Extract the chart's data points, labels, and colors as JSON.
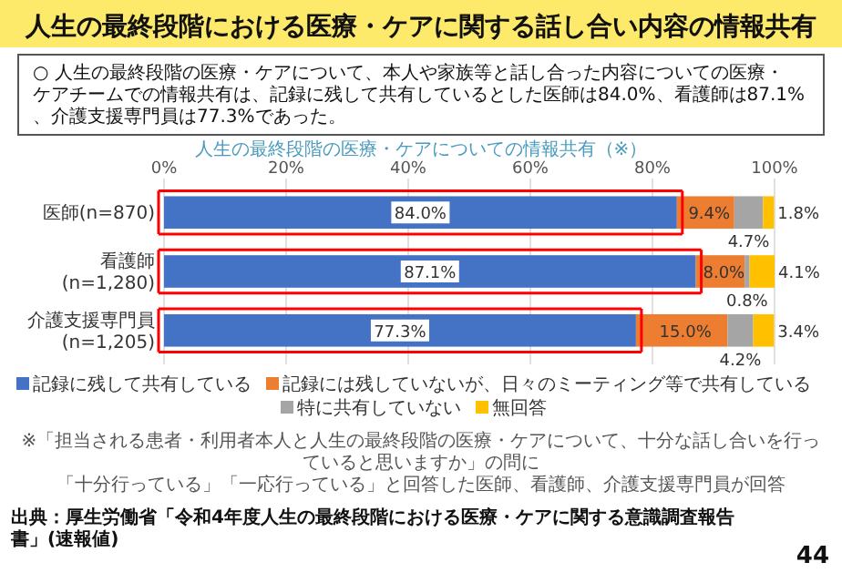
{
  "chart_data": {
    "type": "bar",
    "orientation": "horizontal",
    "stacked": true,
    "title": "人生の最終段階における医療・ケアに関する話し合い内容の情報共有",
    "subtitle": "○ 人生の最終段階の医療・ケアについて、本人や家族等と話し合った内容についての医療・ケアチームでの情報共有は、記録に残して共有しているとした医師は84.0%、看護師は87.1%、介護支援専門員は77.3%であった。",
    "annotations": [
      "人生の最終段階の医療・ケアについての情報共有（※）",
      "※「担当される患者・利用者本人と人生の最終段階の医療・ケアについて、十分な話し合いを行っていると思いますか」の問に",
      "「十分行っている」「一応行っている」と回答した医師、看護師、介護支援専門員が回答",
      "出典：厚生労働省「令和4年度人生の最終段階における医療・ケアに関する意識調査報告書」(速報値)",
      "44"
    ],
    "categories": [
      "医師(n=870)",
      "看護師(n=1,280)",
      "介護支援専門員(n=1,205)"
    ],
    "series": [
      {
        "name": "記録に残して共有している",
        "color": "#4472c4",
        "values": [
          84.0,
          87.1,
          77.3
        ],
        "value_labels": [
          "84.0%",
          "87.1%",
          "77.3%"
        ]
      },
      {
        "name": "記録には残していないが、日々のミーティング等で共有している",
        "color": "#ed7d31",
        "values": [
          9.4,
          8.0,
          15.0
        ],
        "value_labels": [
          "9.4%",
          "8.0%",
          "15.0%"
        ]
      },
      {
        "name": "特に共有していない",
        "color": "#a5a5a5",
        "values": [
          4.7,
          0.8,
          4.2
        ],
        "value_labels": [
          "4.7%",
          "0.8%",
          "4.2%"
        ]
      },
      {
        "name": "無回答",
        "color": "#ffc000",
        "values": [
          1.8,
          4.1,
          3.4
        ],
        "value_labels": [
          "1.8%",
          "4.1%",
          "3.4%"
        ]
      }
    ],
    "xlim": [
      0,
      100
    ],
    "xticks": [
      {
        "value": 0,
        "label": "0%"
      },
      {
        "value": 20,
        "label": "20%"
      },
      {
        "value": 40,
        "label": "40%"
      },
      {
        "value": 60,
        "label": "60%"
      },
      {
        "value": 80,
        "label": "80%"
      },
      {
        "value": 100,
        "label": "100%"
      }
    ],
    "grid": "x",
    "legend": "bottom"
  }
}
